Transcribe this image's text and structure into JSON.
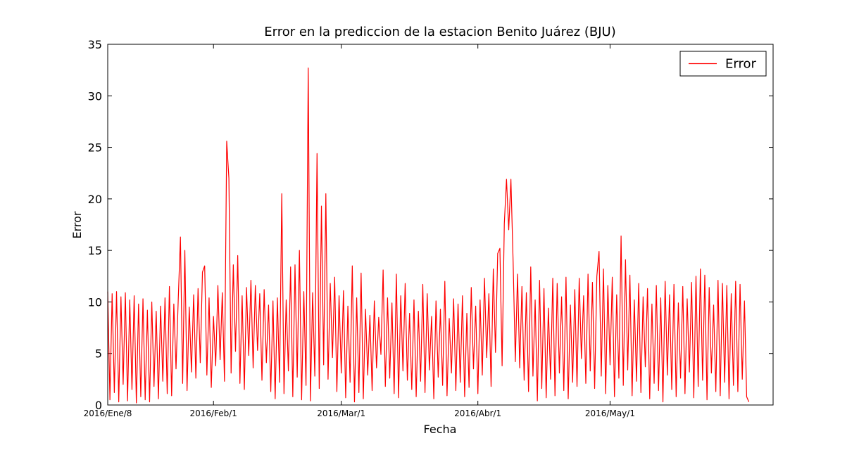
{
  "chart_data": {
    "type": "line",
    "title": "Error en la prediccion de la estacion Benito Juárez (BJU)",
    "xlabel": "Fecha",
    "ylabel": "Error",
    "x": [
      0,
      0.5,
      1,
      1.5,
      2,
      2.5,
      3,
      3.5,
      4,
      4.5,
      5,
      5.5,
      6,
      6.5,
      7,
      7.5,
      8,
      8.5,
      9,
      9.5,
      10,
      10.5,
      11,
      11.5,
      12,
      12.5,
      13,
      13.5,
      14,
      14.5,
      15,
      15.5,
      16,
      16.5,
      17,
      17.5,
      18,
      18.5,
      19,
      19.5,
      20,
      20.5,
      21,
      21.5,
      22,
      22.5,
      23,
      23.5,
      24,
      24.5,
      25,
      25.5,
      26,
      26.5,
      27,
      27.5,
      28,
      28.5,
      29,
      29.5,
      30,
      30.5,
      31,
      31.5,
      32,
      32.5,
      33,
      33.5,
      34,
      34.5,
      35,
      35.5,
      36,
      36.5,
      37,
      37.5,
      38,
      38.5,
      39,
      39.5,
      40,
      40.5,
      41,
      41.5,
      42,
      42.5,
      43,
      43.5,
      44,
      44.5,
      45,
      45.5,
      46,
      46.5,
      47,
      47.5,
      48,
      48.5,
      49,
      49.5,
      50,
      50.5,
      51,
      51.5,
      52,
      52.5,
      53,
      53.5,
      54,
      54.5,
      55,
      55.5,
      56,
      56.5,
      57,
      57.5,
      58,
      58.5,
      59,
      59.5,
      60,
      60.5,
      61,
      61.5,
      62,
      62.5,
      63,
      63.5,
      64,
      64.5,
      65,
      65.5,
      66,
      66.5,
      67,
      67.5,
      68,
      68.5,
      69,
      69.5,
      70,
      70.5,
      71,
      71.5,
      72,
      72.5,
      73,
      73.5,
      74,
      74.5,
      75,
      75.5,
      76,
      76.5,
      77,
      77.5,
      78,
      78.5,
      79,
      79.5,
      80,
      80.5,
      81,
      81.5,
      82,
      82.5,
      83,
      83.5,
      84,
      84.5,
      85,
      85.5,
      86,
      86.5,
      87,
      87.5,
      88,
      88.5,
      89,
      89.5,
      90,
      90.5,
      91,
      91.5,
      92,
      92.5,
      93,
      93.5,
      94,
      94.5,
      95,
      95.5,
      96,
      96.5,
      97,
      97.5,
      98,
      98.5,
      99,
      99.5,
      100,
      100.5,
      101,
      101.5,
      102,
      102.5,
      103,
      103.5,
      104,
      104.5,
      105,
      105.5,
      106,
      106.5,
      107,
      107.5,
      108,
      108.5,
      109,
      109.5,
      110,
      110.5,
      111,
      111.5,
      112,
      112.5,
      113,
      113.5,
      114,
      114.5,
      115,
      115.5,
      116,
      116.5,
      117,
      117.5,
      118,
      118.5,
      119,
      119.5,
      120,
      120.5,
      121,
      121.5,
      122,
      122.5,
      123,
      123.5,
      124,
      124.5,
      125,
      125.5,
      126,
      126.5,
      127,
      127.5,
      128,
      128.5,
      129,
      129.5,
      130,
      130.5,
      131,
      131.5,
      132,
      132.5,
      133,
      133.5,
      134,
      134.5,
      135,
      135.5,
      136,
      136.5,
      137,
      137.5,
      138,
      138.5,
      139,
      139.5,
      140,
      140.5,
      141,
      141.5,
      142,
      142.5,
      143,
      143.5,
      144,
      144.5,
      145,
      145.5
    ],
    "series": [
      {
        "name": "Error",
        "color": "#ff0000",
        "values": [
          11,
          0.5,
          10.8,
          1.2,
          11,
          0.3,
          10.5,
          2,
          10.9,
          0.4,
          10.2,
          1.5,
          10.6,
          0.2,
          9.8,
          0.8,
          10.3,
          0.5,
          9.2,
          0.3,
          10,
          1.8,
          9.1,
          0.6,
          9.6,
          2.3,
          10.4,
          1.1,
          11.5,
          0.9,
          9.8,
          3.5,
          10.2,
          16.3,
          2.1,
          15,
          1.4,
          9.5,
          3.2,
          10.7,
          2.6,
          11.3,
          4.1,
          12.9,
          13.5,
          2.9,
          10.4,
          1.7,
          8.6,
          3.8,
          11.6,
          4.4,
          10.9,
          2.3,
          25.6,
          22,
          3.1,
          13.6,
          5.2,
          14.5,
          2.1,
          10.6,
          1.5,
          11.4,
          4.8,
          12.1,
          3.6,
          11.6,
          5.3,
          10.8,
          2.4,
          11.2,
          4.1,
          9.7,
          1.3,
          10.1,
          0.6,
          10.4,
          2.2,
          20.5,
          1.1,
          10.2,
          3.3,
          13.4,
          0.8,
          13.6,
          2.7,
          15,
          0.5,
          11,
          1.9,
          32.7,
          0.4,
          10.9,
          2.8,
          24.4,
          1.6,
          19.3,
          3.9,
          20.5,
          2.5,
          11.8,
          4.6,
          12.4,
          1.3,
          10.6,
          3.1,
          11.1,
          0.7,
          9.6,
          2.2,
          13.5,
          0.3,
          10.4,
          1.2,
          12.8,
          0.6,
          9.3,
          2.9,
          8.7,
          1.4,
          10.1,
          3.6,
          8.5,
          4.9,
          13.1,
          1.8,
          10.4,
          2.6,
          9.9,
          1.1,
          12.7,
          0.7,
          10.6,
          3.3,
          11.8,
          2.4,
          8.9,
          1.5,
          10.2,
          0.8,
          9.1,
          2.3,
          11.7,
          1.2,
          10.8,
          3.4,
          8.6,
          0.6,
          10.1,
          2.7,
          9.3,
          1.9,
          12,
          0.9,
          8.4,
          3.1,
          10.3,
          1.4,
          9.8,
          2.2,
          10.6,
          0.8,
          8.9,
          1.7,
          11.4,
          3.5,
          9.6,
          1.1,
          10.2,
          2.9,
          12.3,
          4.6,
          10.8,
          1.8,
          13.2,
          5.1,
          14.7,
          15.2,
          3.8,
          17.6,
          21.9,
          17,
          21.9,
          13.9,
          4.2,
          12.7,
          3.6,
          11.5,
          2.4,
          10.9,
          1.3,
          13.4,
          2.8,
          10.2,
          0.4,
          12.1,
          1.6,
          11.3,
          0.7,
          9.4,
          2.5,
          12.3,
          0.9,
          11.8,
          3.1,
          10.5,
          1.4,
          12.4,
          0.6,
          9.7,
          2.2,
          11.2,
          1.8,
          12.3,
          4.5,
          10.6,
          2.1,
          12.7,
          3.3,
          11.9,
          1.6,
          12.5,
          14.9,
          2.8,
          13.2,
          1.1,
          11.6,
          3.9,
          12.4,
          0.8,
          10.7,
          2.6,
          16.4,
          1.9,
          14.1,
          3.4,
          12.6,
          0.9,
          10.2,
          2.3,
          11.8,
          1.2,
          10.5,
          3.7,
          11.3,
          0.6,
          9.8,
          2.1,
          11.6,
          1.4,
          10.4,
          0.3,
          12,
          2.9,
          10.7,
          1.5,
          11.7,
          0.8,
          9.9,
          2.6,
          11.5,
          1.1,
          10.3,
          3.2,
          11.9,
          0.7,
          12.5,
          1.8,
          13.2,
          2.4,
          12.6,
          0.5,
          11.4,
          3.1,
          9.7,
          1.3,
          12.1,
          0.9,
          11.8,
          2.2,
          11.6,
          0.6,
          10.8,
          1.9,
          12,
          1.3,
          11.7,
          2.5,
          10.1,
          0.8,
          0.3
        ]
      }
    ],
    "xlim": [
      0,
      151
    ],
    "xticks": [
      {
        "value": 0,
        "label": "2016/Ene/8"
      },
      {
        "value": 24,
        "label": "2016/Feb/1"
      },
      {
        "value": 53,
        "label": "2016/Mar/1"
      },
      {
        "value": 84,
        "label": "2016/Abr/1"
      },
      {
        "value": 114,
        "label": "2016/May/1"
      }
    ],
    "ylim": [
      0,
      35
    ],
    "yticks": [
      0,
      5,
      10,
      15,
      20,
      25,
      30,
      35
    ],
    "grid": false,
    "legend": "upper-right"
  }
}
